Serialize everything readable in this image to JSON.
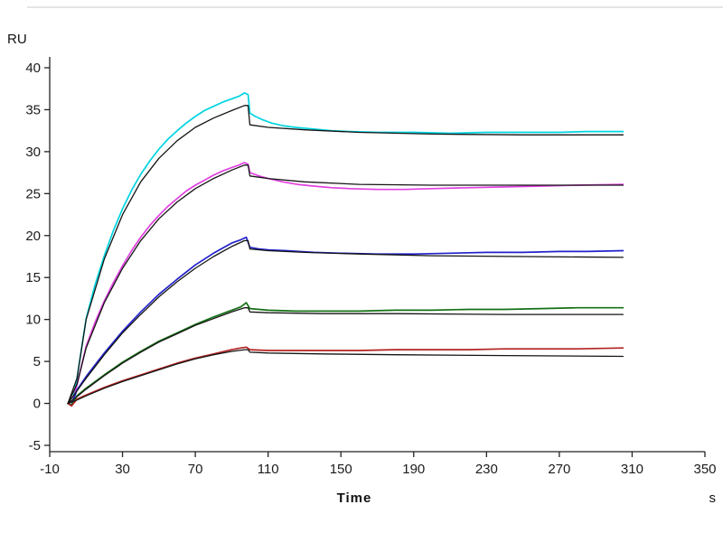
{
  "figure": {
    "y_axis_title": "RU",
    "x_axis_title": "Time",
    "x_axis_unit": "s"
  },
  "chart_data": {
    "type": "line",
    "title": "",
    "xlabel": "Time",
    "ylabel": "RU",
    "x_unit": "s",
    "xlim": [
      -10,
      350
    ],
    "ylim": [
      -5,
      40
    ],
    "xticks": [
      -10,
      30,
      70,
      110,
      150,
      190,
      230,
      270,
      310,
      350
    ],
    "yticks": [
      40,
      35,
      30,
      25,
      20,
      15,
      10,
      5,
      0,
      -5
    ],
    "grid": false,
    "legend_position": "none",
    "description": "SPR sensorgram: five concentration response curves (association 0-97 s, dissociation 100-305 s) each overlaid with a black kinetic fit curve",
    "colors": {
      "curve1": "#00d4e0",
      "curve2": "#e040e0",
      "curve3": "#2222cc",
      "curve4": "#157015",
      "curve5": "#b22222",
      "fit": "#141414",
      "axis": "#222222"
    },
    "series": [
      {
        "name": "response-1-measured",
        "color": "#00d4e0",
        "width": 1.7,
        "points": [
          [
            0,
            0
          ],
          [
            2,
            -0.3
          ],
          [
            5,
            3.0
          ],
          [
            10,
            10.1
          ],
          [
            15,
            14.2
          ],
          [
            20,
            17.6
          ],
          [
            25,
            20.6
          ],
          [
            30,
            23.2
          ],
          [
            35,
            25.4
          ],
          [
            40,
            27.3
          ],
          [
            45,
            28.9
          ],
          [
            50,
            30.3
          ],
          [
            55,
            31.5
          ],
          [
            60,
            32.5
          ],
          [
            65,
            33.4
          ],
          [
            70,
            34.2
          ],
          [
            75,
            34.9
          ],
          [
            80,
            35.4
          ],
          [
            85,
            35.9
          ],
          [
            90,
            36.3
          ],
          [
            94,
            36.6
          ],
          [
            97,
            37.0
          ],
          [
            99,
            36.8
          ],
          [
            100,
            34.6
          ],
          [
            103,
            34.2
          ],
          [
            107,
            33.8
          ],
          [
            112,
            33.4
          ],
          [
            118,
            33.1
          ],
          [
            125,
            32.9
          ],
          [
            135,
            32.7
          ],
          [
            145,
            32.5
          ],
          [
            155,
            32.4
          ],
          [
            170,
            32.3
          ],
          [
            190,
            32.3
          ],
          [
            210,
            32.2
          ],
          [
            230,
            32.3
          ],
          [
            250,
            32.3
          ],
          [
            270,
            32.3
          ],
          [
            285,
            32.4
          ],
          [
            305,
            32.4
          ]
        ]
      },
      {
        "name": "response-1-fit",
        "color": "#141414",
        "width": 1.3,
        "points": [
          [
            0,
            0
          ],
          [
            5,
            3.0
          ],
          [
            10,
            10.0
          ],
          [
            20,
            17.2
          ],
          [
            30,
            22.5
          ],
          [
            40,
            26.4
          ],
          [
            50,
            29.2
          ],
          [
            60,
            31.3
          ],
          [
            70,
            32.9
          ],
          [
            80,
            34.0
          ],
          [
            90,
            34.9
          ],
          [
            97,
            35.5
          ],
          [
            99,
            35.5
          ],
          [
            100,
            33.2
          ],
          [
            110,
            32.9
          ],
          [
            130,
            32.6
          ],
          [
            160,
            32.3
          ],
          [
            200,
            32.1
          ],
          [
            250,
            32.0
          ],
          [
            305,
            32.0
          ]
        ]
      },
      {
        "name": "response-2-measured",
        "color": "#e040e0",
        "width": 1.7,
        "points": [
          [
            0,
            0
          ],
          [
            2,
            -0.3
          ],
          [
            5,
            2.2
          ],
          [
            10,
            6.8
          ],
          [
            15,
            9.7
          ],
          [
            20,
            12.2
          ],
          [
            25,
            14.4
          ],
          [
            30,
            16.4
          ],
          [
            35,
            18.2
          ],
          [
            40,
            19.8
          ],
          [
            45,
            21.2
          ],
          [
            50,
            22.4
          ],
          [
            55,
            23.5
          ],
          [
            60,
            24.4
          ],
          [
            65,
            25.3
          ],
          [
            70,
            26.0
          ],
          [
            75,
            26.6
          ],
          [
            80,
            27.2
          ],
          [
            85,
            27.7
          ],
          [
            90,
            28.1
          ],
          [
            94,
            28.4
          ],
          [
            97,
            28.7
          ],
          [
            99,
            28.5
          ],
          [
            100,
            27.5
          ],
          [
            105,
            27.1
          ],
          [
            110,
            26.8
          ],
          [
            118,
            26.4
          ],
          [
            126,
            26.1
          ],
          [
            135,
            25.9
          ],
          [
            145,
            25.7
          ],
          [
            155,
            25.6
          ],
          [
            170,
            25.5
          ],
          [
            185,
            25.5
          ],
          [
            200,
            25.6
          ],
          [
            220,
            25.7
          ],
          [
            240,
            25.8
          ],
          [
            260,
            25.9
          ],
          [
            280,
            26.0
          ],
          [
            305,
            26.1
          ]
        ]
      },
      {
        "name": "response-2-fit",
        "color": "#141414",
        "width": 1.3,
        "points": [
          [
            0,
            0
          ],
          [
            5,
            2.3
          ],
          [
            10,
            6.6
          ],
          [
            20,
            12.0
          ],
          [
            30,
            16.1
          ],
          [
            40,
            19.4
          ],
          [
            50,
            22.0
          ],
          [
            60,
            24.0
          ],
          [
            70,
            25.6
          ],
          [
            80,
            26.8
          ],
          [
            90,
            27.8
          ],
          [
            97,
            28.4
          ],
          [
            99,
            28.4
          ],
          [
            100,
            27.1
          ],
          [
            110,
            26.8
          ],
          [
            130,
            26.4
          ],
          [
            160,
            26.1
          ],
          [
            200,
            26.0
          ],
          [
            250,
            26.0
          ],
          [
            305,
            26.0
          ]
        ]
      },
      {
        "name": "response-3-measured",
        "color": "#2222cc",
        "width": 1.7,
        "points": [
          [
            0,
            0
          ],
          [
            2,
            -0.2
          ],
          [
            5,
            1.6
          ],
          [
            10,
            3.2
          ],
          [
            20,
            6.0
          ],
          [
            30,
            8.6
          ],
          [
            40,
            10.9
          ],
          [
            50,
            13.0
          ],
          [
            60,
            14.8
          ],
          [
            70,
            16.5
          ],
          [
            80,
            17.9
          ],
          [
            90,
            19.1
          ],
          [
            95,
            19.5
          ],
          [
            98,
            19.8
          ],
          [
            100,
            18.6
          ],
          [
            105,
            18.4
          ],
          [
            110,
            18.3
          ],
          [
            120,
            18.2
          ],
          [
            135,
            18.0
          ],
          [
            150,
            17.9
          ],
          [
            170,
            17.8
          ],
          [
            190,
            17.8
          ],
          [
            210,
            17.9
          ],
          [
            230,
            18.0
          ],
          [
            250,
            18.0
          ],
          [
            270,
            18.1
          ],
          [
            285,
            18.1
          ],
          [
            305,
            18.2
          ]
        ]
      },
      {
        "name": "response-3-fit",
        "color": "#141414",
        "width": 1.3,
        "points": [
          [
            0,
            0
          ],
          [
            5,
            1.5
          ],
          [
            10,
            3.0
          ],
          [
            20,
            5.8
          ],
          [
            30,
            8.4
          ],
          [
            40,
            10.6
          ],
          [
            50,
            12.7
          ],
          [
            60,
            14.5
          ],
          [
            70,
            16.1
          ],
          [
            80,
            17.5
          ],
          [
            90,
            18.7
          ],
          [
            97,
            19.4
          ],
          [
            99,
            19.4
          ],
          [
            100,
            18.4
          ],
          [
            110,
            18.2
          ],
          [
            130,
            18.0
          ],
          [
            160,
            17.8
          ],
          [
            200,
            17.6
          ],
          [
            250,
            17.5
          ],
          [
            305,
            17.4
          ]
        ]
      },
      {
        "name": "response-4-measured",
        "color": "#157015",
        "width": 1.7,
        "points": [
          [
            0,
            0
          ],
          [
            2,
            -0.2
          ],
          [
            5,
            0.9
          ],
          [
            10,
            1.8
          ],
          [
            20,
            3.4
          ],
          [
            30,
            4.9
          ],
          [
            40,
            6.2
          ],
          [
            50,
            7.4
          ],
          [
            60,
            8.4
          ],
          [
            70,
            9.4
          ],
          [
            80,
            10.3
          ],
          [
            90,
            11.1
          ],
          [
            95,
            11.5
          ],
          [
            98,
            12.0
          ],
          [
            100,
            11.3
          ],
          [
            105,
            11.2
          ],
          [
            110,
            11.1
          ],
          [
            125,
            11.0
          ],
          [
            140,
            11.0
          ],
          [
            160,
            11.0
          ],
          [
            180,
            11.1
          ],
          [
            200,
            11.1
          ],
          [
            220,
            11.2
          ],
          [
            240,
            11.2
          ],
          [
            260,
            11.3
          ],
          [
            280,
            11.4
          ],
          [
            305,
            11.4
          ]
        ]
      },
      {
        "name": "response-4-fit",
        "color": "#141414",
        "width": 1.3,
        "points": [
          [
            0,
            0
          ],
          [
            5,
            0.8
          ],
          [
            10,
            1.7
          ],
          [
            20,
            3.3
          ],
          [
            30,
            4.8
          ],
          [
            40,
            6.1
          ],
          [
            50,
            7.3
          ],
          [
            60,
            8.3
          ],
          [
            70,
            9.3
          ],
          [
            80,
            10.1
          ],
          [
            90,
            10.9
          ],
          [
            97,
            11.4
          ],
          [
            99,
            11.4
          ],
          [
            100,
            10.9
          ],
          [
            110,
            10.8
          ],
          [
            140,
            10.7
          ],
          [
            180,
            10.7
          ],
          [
            240,
            10.6
          ],
          [
            305,
            10.6
          ]
        ]
      },
      {
        "name": "response-5-measured",
        "color": "#b22222",
        "width": 1.7,
        "points": [
          [
            0,
            0
          ],
          [
            2,
            -0.3
          ],
          [
            5,
            0.5
          ],
          [
            10,
            1.0
          ],
          [
            20,
            1.9
          ],
          [
            30,
            2.7
          ],
          [
            40,
            3.4
          ],
          [
            50,
            4.1
          ],
          [
            60,
            4.8
          ],
          [
            70,
            5.4
          ],
          [
            80,
            5.9
          ],
          [
            90,
            6.4
          ],
          [
            95,
            6.6
          ],
          [
            98,
            6.7
          ],
          [
            100,
            6.4
          ],
          [
            110,
            6.3
          ],
          [
            125,
            6.3
          ],
          [
            140,
            6.3
          ],
          [
            160,
            6.3
          ],
          [
            180,
            6.4
          ],
          [
            200,
            6.4
          ],
          [
            220,
            6.4
          ],
          [
            240,
            6.5
          ],
          [
            260,
            6.5
          ],
          [
            280,
            6.5
          ],
          [
            305,
            6.6
          ]
        ]
      },
      {
        "name": "response-5-fit",
        "color": "#141414",
        "width": 1.3,
        "points": [
          [
            0,
            0
          ],
          [
            5,
            0.4
          ],
          [
            10,
            0.9
          ],
          [
            20,
            1.8
          ],
          [
            30,
            2.6
          ],
          [
            40,
            3.3
          ],
          [
            50,
            4.0
          ],
          [
            60,
            4.7
          ],
          [
            70,
            5.3
          ],
          [
            80,
            5.8
          ],
          [
            90,
            6.2
          ],
          [
            97,
            6.4
          ],
          [
            99,
            6.4
          ],
          [
            100,
            6.1
          ],
          [
            110,
            6.0
          ],
          [
            140,
            5.9
          ],
          [
            180,
            5.8
          ],
          [
            240,
            5.7
          ],
          [
            305,
            5.6
          ]
        ]
      }
    ]
  }
}
